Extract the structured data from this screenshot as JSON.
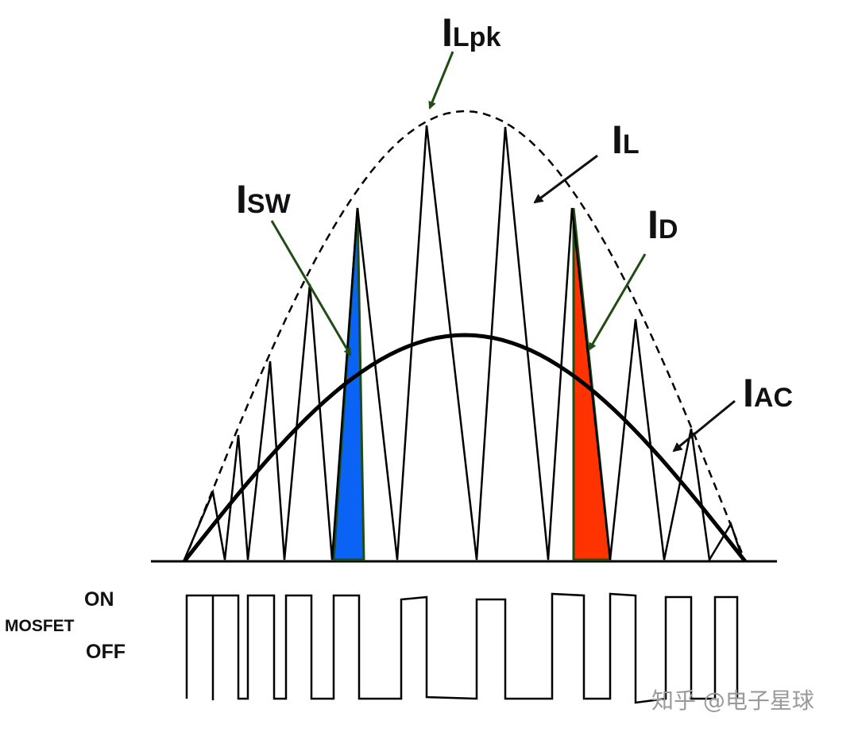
{
  "labels": {
    "lpk": {
      "letter": "I",
      "sub": "Lpk"
    },
    "l": {
      "letter": "I",
      "sub": "L"
    },
    "sw": {
      "letter": "I",
      "sub": "SW"
    },
    "d": {
      "letter": "I",
      "sub": "D"
    },
    "ac": {
      "letter": "I",
      "sub": "AC"
    }
  },
  "mosfet": {
    "on": "ON",
    "name": "MOSFET",
    "off": "OFF"
  },
  "watermark": "知乎 @电子星球"
}
